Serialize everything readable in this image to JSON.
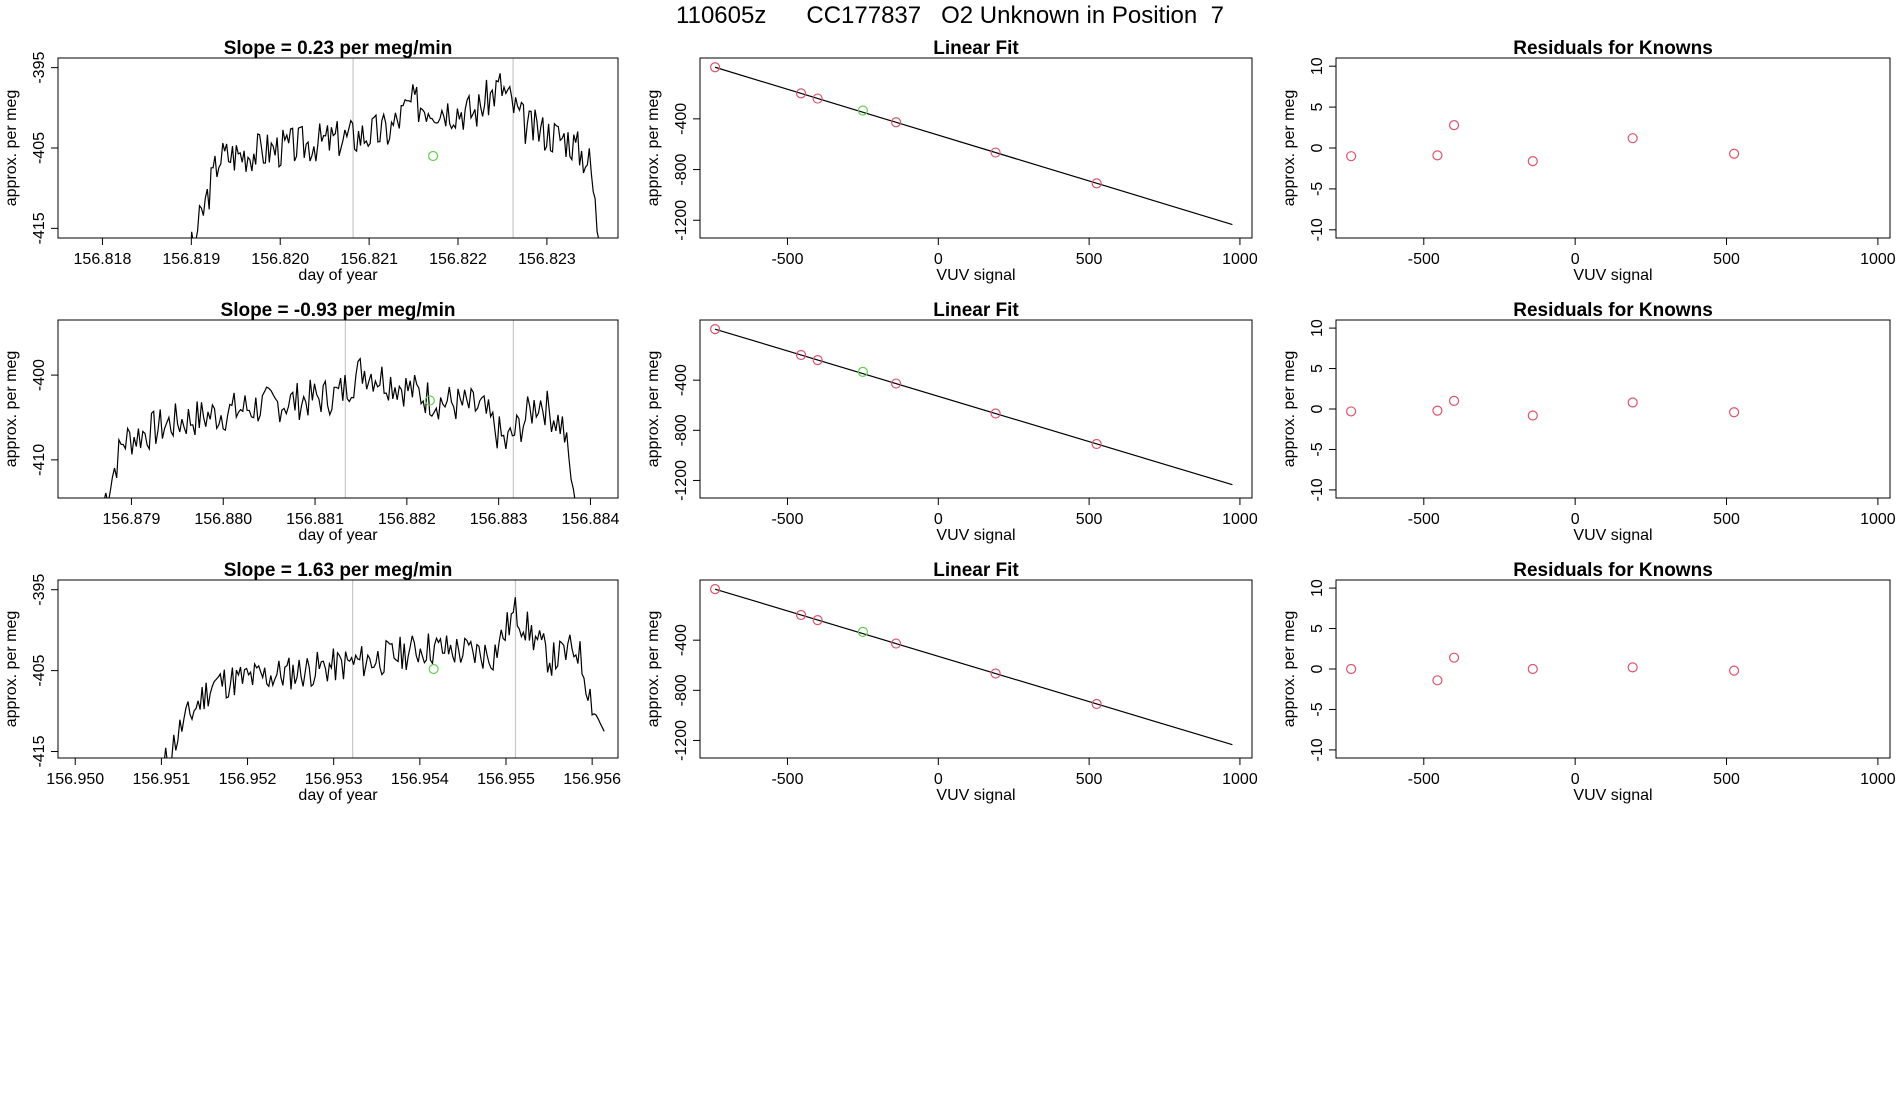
{
  "page": {
    "title": "110605z      CC177837   O2 Unknown in Position  7"
  },
  "chart_data": [
    {
      "id": "ts1",
      "type": "line",
      "title": "Slope =  0.23  per meg/min",
      "xlabel": "day of year",
      "ylabel": "approx. per meg",
      "xlim": [
        156.8175,
        156.8238
      ],
      "ylim": [
        -416.2,
        -393.8
      ],
      "xticks": [
        "156.818",
        "156.819",
        "156.820",
        "156.821",
        "156.822",
        "156.823"
      ],
      "yticks": [
        "-395",
        "-405",
        "-415"
      ],
      "vlines": [
        156.82082,
        156.82262
      ],
      "line_start": [
        156.81883,
        -416.2
      ],
      "line_end": [
        156.82363,
        -416.2
      ],
      "shape": [
        [
          0,
          -0.6
        ],
        [
          0.02,
          -0.2
        ],
        [
          0.1,
          0.45
        ],
        [
          0.3,
          0.52
        ],
        [
          0.5,
          0.6
        ],
        [
          0.55,
          0.75
        ],
        [
          0.7,
          0.7
        ],
        [
          0.76,
          0.85
        ],
        [
          0.82,
          0.62
        ],
        [
          0.92,
          0.55
        ],
        [
          0.97,
          0.42
        ],
        [
          1,
          -0.2
        ]
      ],
      "noise": 0.11,
      "seed": 3,
      "highlight": {
        "x": 156.82172,
        "y": -406.0
      }
    },
    {
      "id": "fit1",
      "type": "scatter",
      "title": "Linear Fit",
      "xlabel": "VUV signal",
      "ylabel": "approx. per meg",
      "xlim": [
        -790,
        1040
      ],
      "ylim": [
        -1340,
        80
      ],
      "xticks": [
        "-500",
        "0",
        "500",
        "1000"
      ],
      "yticks": [
        "-400",
        "-800",
        "-1200"
      ],
      "fit_line": [
        [
          -740,
          7
        ],
        [
          975,
          -1234
        ]
      ],
      "points": [
        [
          -740,
          7
        ],
        [
          -455,
          -199
        ],
        [
          -400,
          -240
        ],
        [
          -140,
          -427
        ],
        [
          190,
          -666
        ],
        [
          525,
          -909
        ]
      ],
      "highlight": [
        [
          -250,
          -334
        ]
      ]
    },
    {
      "id": "res1",
      "type": "scatter",
      "title": "Residuals for Knowns",
      "xlabel": "VUV signal",
      "ylabel": "approx. per meg",
      "xlim": [
        -790,
        1040
      ],
      "ylim": [
        -11,
        11
      ],
      "xticks": [
        "-500",
        "0",
        "500",
        "1000"
      ],
      "yticks": [
        "-10",
        "-5",
        "0",
        "5",
        "10"
      ],
      "points": [
        [
          -740,
          -1.0
        ],
        [
          -455,
          -0.9
        ],
        [
          -400,
          2.8
        ],
        [
          -140,
          -1.6
        ],
        [
          190,
          1.2
        ],
        [
          525,
          -0.7
        ]
      ]
    },
    {
      "id": "ts2",
      "type": "line",
      "title": "Slope =  -0.93  per meg/min",
      "xlabel": "day of year",
      "ylabel": "approx. per meg",
      "xlim": [
        156.8782,
        156.8843
      ],
      "ylim": [
        -414.5,
        -393.5
      ],
      "xticks": [
        "156.879",
        "156.880",
        "156.881",
        "156.882",
        "156.883",
        "156.884"
      ],
      "yticks": [
        "-400",
        "-410"
      ],
      "vlines": [
        156.88133,
        156.88316
      ],
      "line_start": [
        156.87865,
        -414.5
      ],
      "line_end": [
        156.88386,
        -414.5
      ],
      "shape": [
        [
          0,
          -0.1
        ],
        [
          0.05,
          0.32
        ],
        [
          0.15,
          0.42
        ],
        [
          0.3,
          0.5
        ],
        [
          0.5,
          0.58
        ],
        [
          0.55,
          0.72
        ],
        [
          0.7,
          0.55
        ],
        [
          0.8,
          0.5
        ],
        [
          0.85,
          0.3
        ],
        [
          0.92,
          0.55
        ],
        [
          0.97,
          0.4
        ],
        [
          1,
          -0.1
        ]
      ],
      "noise": 0.11,
      "seed": 7,
      "highlight": {
        "x": 156.88225,
        "y": -403.0
      }
    },
    {
      "id": "fit2",
      "type": "scatter",
      "title": "Linear Fit",
      "xlabel": "VUV signal",
      "ylabel": "approx. per meg",
      "xlim": [
        -790,
        1040
      ],
      "ylim": [
        -1340,
        80
      ],
      "xticks": [
        "-500",
        "0",
        "500",
        "1000"
      ],
      "yticks": [
        "-400",
        "-800",
        "-1200"
      ],
      "fit_line": [
        [
          -740,
          7
        ],
        [
          975,
          -1234
        ]
      ],
      "points": [
        [
          -740,
          7
        ],
        [
          -455,
          -199
        ],
        [
          -400,
          -240
        ],
        [
          -140,
          -427
        ],
        [
          190,
          -666
        ],
        [
          525,
          -909
        ]
      ],
      "highlight": [
        [
          -250,
          -334
        ]
      ]
    },
    {
      "id": "res2",
      "type": "scatter",
      "title": "Residuals for Knowns",
      "xlabel": "VUV signal",
      "ylabel": "approx. per meg",
      "xlim": [
        -790,
        1040
      ],
      "ylim": [
        -11,
        11
      ],
      "xticks": [
        "-500",
        "0",
        "500",
        "1000"
      ],
      "yticks": [
        "-10",
        "-5",
        "0",
        "5",
        "10"
      ],
      "points": [
        [
          -740,
          -0.3
        ],
        [
          -455,
          -0.2
        ],
        [
          -400,
          1.0
        ],
        [
          -140,
          -0.8
        ],
        [
          190,
          0.8
        ],
        [
          525,
          -0.4
        ]
      ]
    },
    {
      "id": "ts3",
      "type": "line",
      "title": "Slope =  1.63  per meg/min",
      "xlabel": "day of year",
      "ylabel": "approx. per meg",
      "xlim": [
        156.9498,
        156.9563
      ],
      "ylim": [
        -415.8,
        -393.8
      ],
      "xticks": [
        "156.950",
        "156.951",
        "156.952",
        "156.953",
        "156.954",
        "156.955",
        "156.956"
      ],
      "yticks": [
        "-395",
        "-405",
        "-415"
      ],
      "vlines": [
        156.95322,
        156.95511
      ],
      "line_start": [
        156.95098,
        -415.8
      ],
      "line_end": [
        156.95614,
        -412.5
      ],
      "shape": [
        [
          0,
          -0.1
        ],
        [
          0.05,
          0.18
        ],
        [
          0.12,
          0.42
        ],
        [
          0.3,
          0.48
        ],
        [
          0.5,
          0.56
        ],
        [
          0.6,
          0.62
        ],
        [
          0.75,
          0.58
        ],
        [
          0.8,
          0.82
        ],
        [
          0.88,
          0.55
        ],
        [
          0.94,
          0.62
        ],
        [
          0.98,
          0.25
        ],
        [
          1,
          0.15
        ]
      ],
      "noise": 0.1,
      "seed": 11,
      "highlight": {
        "x": 156.95416,
        "y": -404.8
      }
    },
    {
      "id": "fit3",
      "type": "scatter",
      "title": "Linear Fit",
      "xlabel": "VUV signal",
      "ylabel": "approx. per meg",
      "xlim": [
        -790,
        1040
      ],
      "ylim": [
        -1340,
        80
      ],
      "xticks": [
        "-500",
        "0",
        "500",
        "1000"
      ],
      "yticks": [
        "-400",
        "-800",
        "-1200"
      ],
      "fit_line": [
        [
          -740,
          7
        ],
        [
          975,
          -1234
        ]
      ],
      "points": [
        [
          -740,
          7
        ],
        [
          -455,
          -199
        ],
        [
          -400,
          -240
        ],
        [
          -140,
          -427
        ],
        [
          190,
          -666
        ],
        [
          525,
          -909
        ]
      ],
      "highlight": [
        [
          -250,
          -334
        ]
      ]
    },
    {
      "id": "res3",
      "type": "scatter",
      "title": "Residuals for Knowns",
      "xlabel": "VUV signal",
      "ylabel": "approx. per meg",
      "xlim": [
        -790,
        1040
      ],
      "ylim": [
        -11,
        11
      ],
      "xticks": [
        "-500",
        "0",
        "500",
        "1000"
      ],
      "yticks": [
        "-10",
        "-5",
        "0",
        "5",
        "10"
      ],
      "points": [
        [
          -740,
          0.0
        ],
        [
          -455,
          -1.4
        ],
        [
          -400,
          1.4
        ],
        [
          -140,
          0.0
        ],
        [
          190,
          0.2
        ],
        [
          525,
          -0.2
        ]
      ]
    }
  ],
  "colors": {
    "axis": "#000000",
    "line": "#000000",
    "vline": "#c8c8c8",
    "point": "#df536b",
    "highlight": "#61d04f"
  }
}
